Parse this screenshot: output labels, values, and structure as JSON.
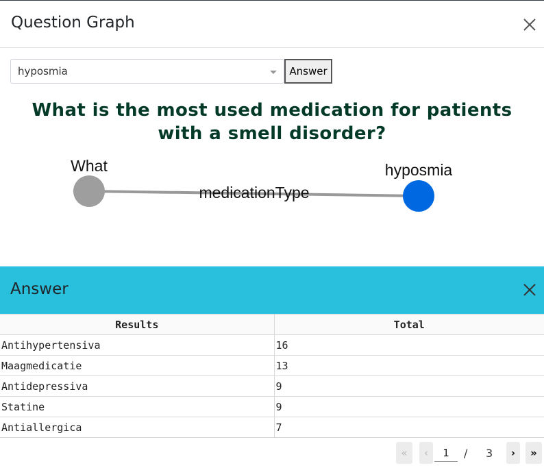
{
  "modal": {
    "title": "Question Graph"
  },
  "search": {
    "selected_value": "hyposmia",
    "answer_button": "Answer"
  },
  "question": {
    "text": "What is the most used medication for patients with a smell disorder?"
  },
  "graph": {
    "source_node": {
      "label": "What",
      "color": "#9e9e9e"
    },
    "target_node": {
      "label": "hyposmia",
      "color": "#0068e0"
    },
    "edge": {
      "label": "medicationType",
      "color": "#999999"
    }
  },
  "answer_panel": {
    "title": "Answer",
    "header_color": "#29c0dd",
    "columns": [
      "Results",
      "Total"
    ],
    "rows": [
      {
        "result": "Antihypertensiva",
        "total": "16"
      },
      {
        "result": "Maagmedicatie",
        "total": "13"
      },
      {
        "result": "Antidepressiva",
        "total": "9"
      },
      {
        "result": "Statine",
        "total": "9"
      },
      {
        "result": "Antiallergica",
        "total": "7"
      }
    ]
  },
  "pagination": {
    "first_icon": "«",
    "prev_icon": "‹",
    "current_page": "1",
    "separator": "/",
    "total_pages": "3",
    "next_icon": "›",
    "last_icon": "»"
  }
}
